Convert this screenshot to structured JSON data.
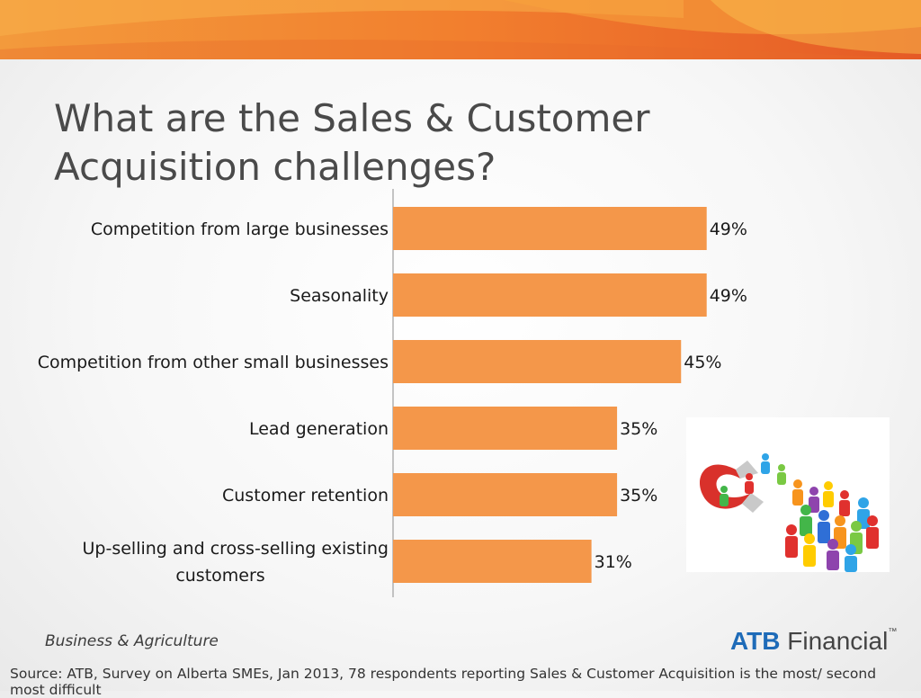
{
  "slide": {
    "title_line1": "What are the Sales & Customer",
    "title_line2": "Acquisition challenges?",
    "footer_left": "Business & Agriculture",
    "logo": {
      "brand": "ATB",
      "name": "Financial",
      "tm": "™"
    },
    "source": "Source:  ATB, Survey on Alberta SMEs, Jan 2013, 78 respondents reporting Sales & Customer Acquisition is the most/ second most difficult"
  },
  "colors": {
    "bar": "#F4974A",
    "banner_dark": "#E8622A",
    "banner_light": "#F7A23E",
    "text": "#1a1a1a"
  },
  "chart_data": {
    "type": "bar",
    "orientation": "horizontal",
    "categories": [
      [
        "Competition from large businesses"
      ],
      [
        "Seasonality"
      ],
      [
        "Competition from other small businesses"
      ],
      [
        "Lead generation"
      ],
      [
        "Customer retention"
      ],
      [
        "Up-selling and cross-selling existing",
        "customers"
      ]
    ],
    "values": [
      49,
      49,
      45,
      35,
      35,
      31
    ],
    "data_labels": [
      "49%",
      "49%",
      "45%",
      "35%",
      "35%",
      "31%"
    ],
    "unit": "%",
    "xlim": [
      0,
      60
    ],
    "grid": false,
    "legend": "none"
  }
}
